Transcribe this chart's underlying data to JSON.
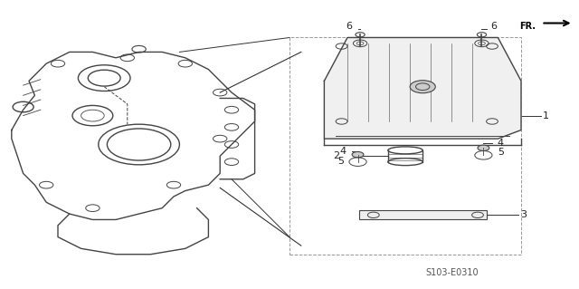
{
  "bg_color": "#ffffff",
  "line_color": "#333333",
  "part_label_color": "#222222",
  "fr_label": "FR.",
  "diagram_code": "S103-E0310",
  "figsize": [
    6.4,
    3.19
  ],
  "dpi": 100
}
